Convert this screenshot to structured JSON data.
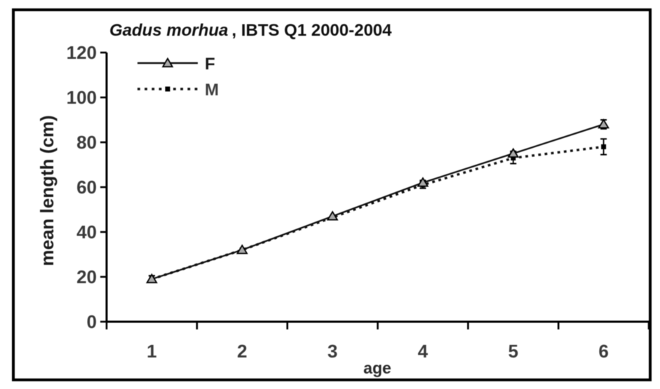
{
  "figure": {
    "title_full": "Gadus morhua , IBTS Q1 2000-2004"
  },
  "chart_data": {
    "type": "line",
    "title": "Gadus morhua , IBTS Q1 2000-2004",
    "title_italic": "Gadus morhua",
    "title_rest": ", IBTS Q1 2000-2004",
    "xlabel": "age",
    "ylabel": "mean length (cm)",
    "categories": [
      "1",
      "2",
      "3",
      "4",
      "5",
      "6"
    ],
    "y_ticks": [
      0,
      20,
      40,
      60,
      80,
      100,
      120
    ],
    "ylim": [
      0,
      120
    ],
    "grid": false,
    "legend_position": "top-left",
    "series": [
      {
        "name": "F",
        "line_style": "solid",
        "marker": "triangle",
        "values": [
          19,
          32,
          47,
          62,
          75,
          88
        ],
        "errors": [
          1.5,
          0,
          0,
          1,
          1,
          2
        ]
      },
      {
        "name": "M",
        "line_style": "dotted",
        "marker": "square",
        "values": [
          19,
          32,
          46.5,
          61,
          73,
          78
        ],
        "errors": [
          1.5,
          0,
          0,
          1.5,
          2.5,
          3.5
        ]
      }
    ],
    "colors": {
      "line": "#111111",
      "marker_fill": "#a9a9a9",
      "marker_stroke": "#000000",
      "axis": "#000000",
      "tick_text": "#3a3a3a",
      "border": "#000000",
      "background": "#ffffff"
    }
  }
}
